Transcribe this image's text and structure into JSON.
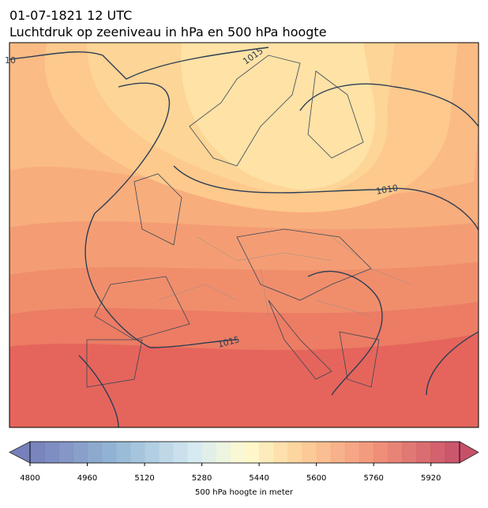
{
  "header": {
    "date": "01-07-1821 12 UTC",
    "title": "Luchtdruk op zeeniveau in hPa en 500 hPa hoogte"
  },
  "contour_labels": [
    "10",
    "1015",
    "1010",
    "1015"
  ],
  "colorbar": {
    "label": "500 hPa hoogte in meter",
    "lim": [
      4800,
      6000
    ],
    "step": 40,
    "ticks": [
      4800,
      4960,
      5120,
      5280,
      5440,
      5600,
      5760,
      5920
    ]
  }
}
